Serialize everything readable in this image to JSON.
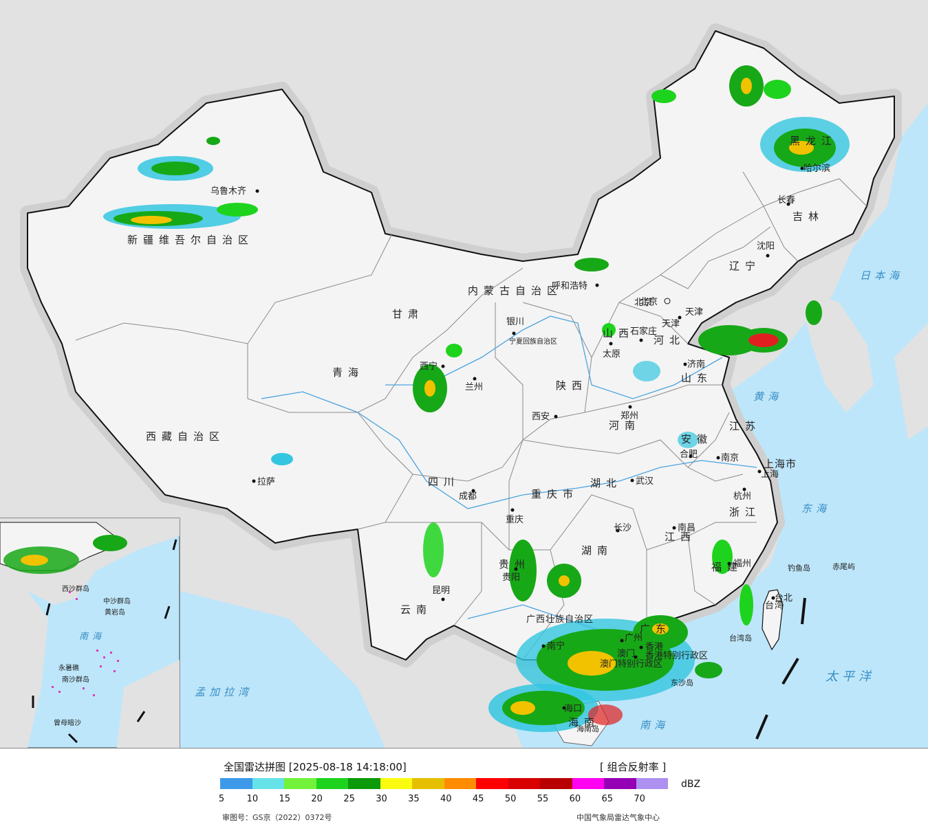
{
  "colors": {
    "ocean": "#bde6fa",
    "land_outside": "#e2e2e2",
    "china_land": "#f4f4f4",
    "border": "#111111",
    "province_border": "#8a8a8a",
    "river": "#4aa3df",
    "echo_low": "#34c6e0",
    "echo_mid": "#17a817",
    "echo_high": "#f2c200",
    "echo_severe": "#e02020"
  },
  "title": "全国雷达拼图 [2025-08-18 14:18:00]",
  "product": "[ 组合反射率 ]",
  "unit": "dBZ",
  "colorbar": [
    {
      "from": 5,
      "color": "#3d9ae8"
    },
    {
      "from": 10,
      "color": "#66e3e8"
    },
    {
      "from": 15,
      "color": "#72f23a"
    },
    {
      "from": 20,
      "color": "#1ed31e"
    },
    {
      "from": 25,
      "color": "#0a9a0a"
    },
    {
      "from": 30,
      "color": "#fbfb10"
    },
    {
      "from": 35,
      "color": "#e6c000"
    },
    {
      "from": 40,
      "color": "#ff8c00"
    },
    {
      "from": 45,
      "color": "#ff0000"
    },
    {
      "from": 50,
      "color": "#d80000"
    },
    {
      "from": 55,
      "color": "#b80000"
    },
    {
      "from": 60,
      "color": "#ff00f0"
    },
    {
      "from": 65,
      "color": "#9600b4"
    },
    {
      "from": 70,
      "color": "#ad90f0"
    }
  ],
  "tick_labels": [
    "5",
    "10",
    "15",
    "20",
    "25",
    "30",
    "35",
    "40",
    "45",
    "50",
    "55",
    "60",
    "65",
    "70"
  ],
  "review_number": "审图号：GS京（2022）0372号",
  "credit": "中国气象局雷达气象中心",
  "provinces": [
    "新疆维吾尔自治区",
    "西藏自治区",
    "青海",
    "甘肃",
    "内蒙古自治区",
    "黑龙江",
    "吉林",
    "辽宁",
    "河北",
    "山西",
    "陕西",
    "宁夏回族自治区",
    "四川",
    "重庆市",
    "云南",
    "贵州",
    "广西壮族自治区",
    "湖南",
    "湖北",
    "河南",
    "山东",
    "江苏",
    "安徽",
    "浙江",
    "江西",
    "福建",
    "广东",
    "海南",
    "台湾",
    "北京",
    "天津",
    "上海市",
    "香港特别行政区",
    "澳门特别行政区"
  ],
  "cities": [
    "乌鲁木齐",
    "拉萨",
    "西宁",
    "兰州",
    "银川",
    "呼和浩特",
    "北京",
    "天津",
    "石家庄",
    "太原",
    "济南",
    "郑州",
    "西安",
    "成都",
    "重庆",
    "昆明",
    "贵阳",
    "南宁",
    "长沙",
    "武汉",
    "南昌",
    "合肥",
    "南京",
    "上海",
    "杭州",
    "福州",
    "台北",
    "广州",
    "海口",
    "哈尔滨",
    "长春",
    "沈阳",
    "香港",
    "澳门"
  ],
  "seas": [
    "日本海",
    "黄海",
    "东海",
    "太平洋",
    "南海",
    "孟加拉湾"
  ],
  "islands": [
    "钓鱼岛",
    "赤尾屿",
    "台湾岛",
    "东沙岛",
    "海南岛"
  ],
  "inset_labels": [
    "南海",
    "中沙群岛",
    "黄岩岛",
    "永暑礁",
    "曾母暗沙",
    "南沙群岛",
    "西沙群岛"
  ]
}
